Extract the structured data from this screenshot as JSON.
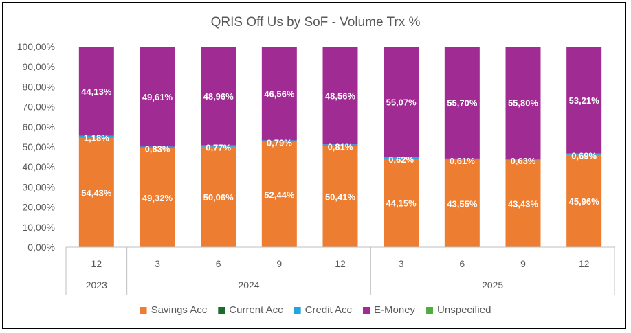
{
  "chart_data": {
    "type": "bar",
    "stacked": true,
    "title": "QRIS Off Us by SoF - Volume Trx %",
    "categories": [
      "12",
      "3",
      "6",
      "9",
      "12",
      "3",
      "6",
      "9",
      "12"
    ],
    "category_groups": [
      {
        "label": "2023",
        "count": 1
      },
      {
        "label": "2024",
        "count": 4
      },
      {
        "label": "2025",
        "count": 4
      }
    ],
    "y_ticks": [
      "0,00%",
      "10,00%",
      "20,00%",
      "30,00%",
      "40,00%",
      "50,00%",
      "60,00%",
      "70,00%",
      "80,00%",
      "90,00%",
      "100,00%"
    ],
    "ylim": [
      0,
      100
    ],
    "legend_position": "bottom",
    "series": [
      {
        "name": "Savings Acc",
        "color": "#ED7D31",
        "values": [
          54.43,
          49.32,
          50.06,
          52.44,
          50.41,
          44.15,
          43.55,
          43.43,
          45.96
        ],
        "labels": [
          "54,43%",
          "49,32%",
          "50,06%",
          "52,44%",
          "50,41%",
          "44,15%",
          "43,55%",
          "43,43%",
          "45,96%"
        ]
      },
      {
        "name": "Current Acc",
        "color": "#1E6B2E",
        "values": [
          0.05,
          0.05,
          0.05,
          0.05,
          0.05,
          0.05,
          0.05,
          0.05,
          0.05
        ]
      },
      {
        "name": "Credit Acc",
        "color": "#1FA6DF",
        "values": [
          1.18,
          0.83,
          0.77,
          0.79,
          0.81,
          0.62,
          0.61,
          0.63,
          0.69
        ],
        "labels": [
          "1,18%",
          "0,83%",
          "0,77%",
          "0,79%",
          "0,81%",
          "0,62%",
          "0,61%",
          "0,63%",
          "0,69%"
        ]
      },
      {
        "name": "E-Money",
        "color": "#A02B93",
        "values": [
          44.13,
          49.61,
          48.96,
          46.56,
          48.56,
          55.07,
          55.7,
          55.8,
          53.21
        ],
        "labels": [
          "44,13%",
          "49,61%",
          "48,96%",
          "46,56%",
          "48,56%",
          "55,07%",
          "55,70%",
          "55,80%",
          "53,21%"
        ]
      },
      {
        "name": "Unspecified",
        "color": "#4EAD3B",
        "values": [
          0.21,
          0.19,
          0.16,
          0.16,
          0.17,
          0.11,
          0.09,
          0.09,
          0.09
        ]
      }
    ]
  }
}
